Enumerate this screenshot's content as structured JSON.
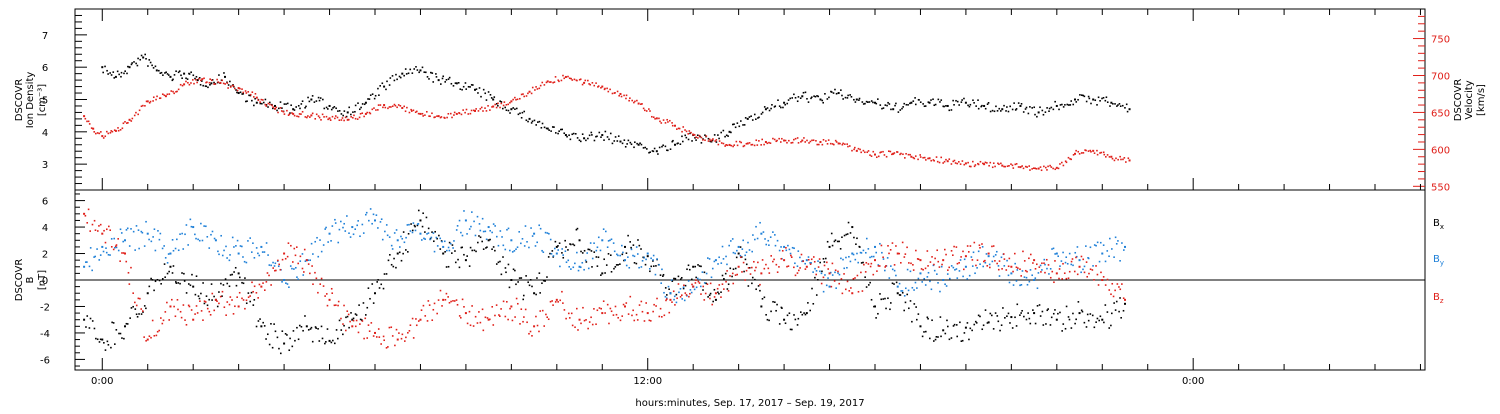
{
  "chart_data": [
    {
      "type": "scatter",
      "panel": "top",
      "ylabel_left": [
        "DSCOVR",
        "Ion Density",
        "[cm⁻³]"
      ],
      "ylabel_right": [
        "DSCOVR",
        "Velocity",
        "[km/s]"
      ],
      "x_axis": {
        "unit": "hours since 00:00 Sep 17, 2017",
        "range": [
          -0.6,
          29.1
        ]
      },
      "y_left": {
        "range": [
          2.2,
          7.8
        ],
        "ticks": [
          3,
          4,
          5,
          6,
          7
        ]
      },
      "y_right": {
        "range": [
          545,
          790
        ],
        "ticks": [
          550,
          600,
          650,
          700,
          750
        ]
      },
      "grid": false,
      "series": [
        {
          "quantity": "Ion Density",
          "color": "#000000",
          "axis": "left",
          "x": [
            0,
            0.3,
            0.6,
            0.9,
            1.2,
            1.5,
            1.8,
            2.1,
            2.4,
            2.7,
            3.0,
            3.4,
            3.8,
            4.2,
            4.6,
            5.0,
            5.4,
            5.8,
            6.2,
            6.6,
            7.0,
            7.4,
            7.8,
            8.2,
            8.6,
            9.0,
            9.4,
            9.8,
            10.2,
            10.6,
            11.0,
            11.4,
            11.8,
            12.2,
            12.6,
            13.0,
            13.4,
            13.8,
            14.2,
            14.6,
            15.0,
            15.4,
            15.8,
            16.2,
            16.6,
            17.0,
            17.4,
            17.8,
            18.2,
            18.6,
            19.0,
            19.4,
            19.8,
            20.2,
            20.6,
            21.0,
            21.4,
            21.8,
            22.2,
            22.6
          ],
          "values": [
            6.0,
            5.7,
            6.0,
            6.3,
            5.9,
            5.7,
            5.8,
            5.6,
            5.5,
            5.7,
            5.2,
            4.9,
            4.8,
            4.7,
            5.0,
            4.8,
            4.6,
            4.9,
            5.4,
            5.8,
            5.9,
            5.6,
            5.5,
            5.3,
            5.0,
            4.7,
            4.4,
            4.1,
            3.9,
            3.8,
            3.9,
            3.7,
            3.6,
            3.4,
            3.6,
            3.9,
            3.7,
            4.0,
            4.4,
            4.7,
            4.9,
            5.1,
            5.0,
            5.2,
            5.0,
            4.9,
            4.7,
            4.9,
            4.9,
            4.8,
            4.9,
            4.8,
            4.7,
            4.8,
            4.6,
            4.8,
            5.0,
            5.0,
            4.9,
            4.7
          ]
        },
        {
          "quantity": "Velocity",
          "color": "#e0201a",
          "axis": "right",
          "x": [
            -0.4,
            -0.2,
            0,
            0.3,
            0.6,
            1.0,
            1.4,
            1.8,
            2.2,
            2.6,
            3.0,
            3.4,
            3.8,
            4.2,
            4.6,
            5.0,
            5.4,
            5.8,
            6.2,
            6.6,
            7.0,
            7.4,
            7.8,
            8.2,
            8.6,
            9.0,
            9.4,
            9.8,
            10.2,
            10.6,
            11.0,
            11.4,
            11.8,
            12.2,
            12.6,
            13.0,
            13.4,
            13.8,
            14.2,
            14.6,
            15.0,
            15.4,
            15.8,
            16.2,
            16.6,
            17.0,
            17.4,
            17.8,
            18.2,
            18.6,
            19.0,
            19.4,
            19.8,
            20.2,
            20.6,
            21.0,
            21.4,
            21.8,
            22.2,
            22.6
          ],
          "values": [
            645,
            628,
            618,
            625,
            640,
            665,
            672,
            688,
            695,
            690,
            683,
            670,
            655,
            648,
            646,
            642,
            640,
            648,
            660,
            656,
            648,
            645,
            648,
            652,
            658,
            665,
            678,
            692,
            698,
            690,
            685,
            675,
            662,
            642,
            632,
            620,
            612,
            606,
            608,
            610,
            612,
            612,
            610,
            608,
            598,
            593,
            594,
            590,
            588,
            584,
            581,
            580,
            578,
            576,
            574,
            575,
            594,
            598,
            590,
            585
          ]
        }
      ]
    },
    {
      "type": "scatter",
      "panel": "bottom",
      "ylabel_left": [
        "DSCOVR",
        "B",
        "[nT]"
      ],
      "x_axis": {
        "unit": "hours since 00:00 Sep 17, 2017",
        "range": [
          -0.6,
          29.1
        ]
      },
      "y": {
        "range": [
          -6.8,
          6.8
        ],
        "ticks": [
          -6,
          -4,
          -2,
          0,
          2,
          4,
          6
        ]
      },
      "zero_line": true,
      "grid": false,
      "legend_position": "right",
      "series": [
        {
          "name": "Bx",
          "color": "#000000",
          "x": [
            -0.4,
            0,
            0.5,
            1.0,
            1.5,
            2.0,
            2.5,
            3.0,
            3.5,
            4.0,
            4.5,
            5.0,
            5.5,
            6.0,
            6.5,
            7.0,
            7.5,
            8.0,
            8.5,
            9.0,
            9.5,
            10.0,
            10.5,
            11.0,
            11.5,
            12.0,
            12.5,
            13.0,
            13.5,
            14.0,
            14.5,
            15.0,
            15.5,
            16.0,
            16.5,
            17.0,
            17.5,
            18.0,
            18.5,
            19.0,
            19.5,
            20.0,
            20.5,
            21.0,
            21.5,
            22.0,
            22.5
          ],
          "values": [
            -3.0,
            -4.5,
            -3.5,
            -1.0,
            1.0,
            -0.5,
            -1.5,
            0.5,
            -3.5,
            -4.8,
            -3.5,
            -4.6,
            -3.0,
            -1.0,
            2.0,
            4.5,
            2.0,
            1.5,
            3.0,
            0.0,
            -1.0,
            2.5,
            3.0,
            0.5,
            2.5,
            1.8,
            -1.0,
            1.0,
            -1.5,
            2.0,
            -2.0,
            -3.0,
            -2.5,
            2.5,
            4.0,
            -2.0,
            -1.0,
            -3.5,
            -3.8,
            -3.6,
            -3.2,
            -2.8,
            -2.5,
            -3.0,
            -2.5,
            -3.0,
            -1.8
          ]
        },
        {
          "name": "By",
          "color": "#1f80d8",
          "x": [
            -0.4,
            0,
            0.5,
            1.0,
            1.5,
            2.0,
            2.5,
            3.0,
            3.5,
            4.0,
            4.5,
            5.0,
            5.5,
            6.0,
            6.5,
            7.0,
            7.5,
            8.0,
            8.5,
            9.0,
            9.5,
            10.0,
            10.5,
            11.0,
            11.5,
            12.0,
            12.5,
            13.0,
            13.5,
            14.0,
            14.5,
            15.0,
            15.5,
            16.0,
            16.5,
            17.0,
            17.5,
            18.0,
            18.5,
            19.0,
            19.5,
            20.0,
            20.5,
            21.0,
            21.5,
            22.0,
            22.5
          ],
          "values": [
            1.0,
            2.5,
            3.0,
            3.5,
            2.0,
            4.0,
            3.0,
            2.0,
            2.5,
            0.0,
            1.5,
            3.5,
            4.0,
            4.5,
            3.0,
            3.5,
            2.5,
            4.5,
            4.0,
            3.0,
            3.5,
            2.0,
            1.0,
            3.0,
            1.5,
            2.0,
            -1.0,
            -0.5,
            1.5,
            2.5,
            3.5,
            2.5,
            1.5,
            -0.5,
            2.0,
            2.5,
            -0.5,
            0.5,
            0.0,
            1.0,
            1.8,
            0.5,
            0.0,
            2.0,
            1.5,
            2.0,
            2.5
          ]
        },
        {
          "name": "Bz",
          "color": "#e0201a",
          "x": [
            -0.4,
            0,
            0.5,
            1.0,
            1.5,
            2.0,
            2.5,
            3.0,
            3.5,
            4.0,
            4.5,
            5.0,
            5.5,
            6.0,
            6.5,
            7.0,
            7.5,
            8.0,
            8.5,
            9.0,
            9.5,
            10.0,
            10.5,
            11.0,
            11.5,
            12.0,
            12.5,
            13.0,
            13.5,
            14.0,
            14.5,
            15.0,
            15.5,
            16.0,
            16.5,
            17.0,
            17.5,
            18.0,
            18.5,
            19.0,
            19.5,
            20.0,
            20.5,
            21.0,
            21.5,
            22.0,
            22.5
          ],
          "values": [
            5.0,
            3.5,
            2.0,
            -4.5,
            -2.0,
            -3.0,
            -1.5,
            -2.0,
            -0.5,
            2.0,
            1.5,
            -1.5,
            -3.5,
            -4.0,
            -4.5,
            -3.0,
            -1.5,
            -2.5,
            -3.0,
            -2.0,
            -3.5,
            -1.5,
            -3.0,
            -2.5,
            -2.0,
            -2.5,
            -1.5,
            -0.5,
            -1.0,
            1.0,
            0.5,
            1.5,
            1.0,
            0.5,
            -1.0,
            1.5,
            2.0,
            1.5,
            1.5,
            1.8,
            2.0,
            1.0,
            1.5,
            0.5,
            1.0,
            0.0,
            -1.5
          ]
        }
      ]
    }
  ],
  "text": {
    "tick_labels_x": [
      "0:00",
      "12:00",
      "0:00"
    ],
    "tick_hours_x": [
      0,
      12,
      24
    ],
    "xlabel": "hours:minutes, Sep. 17, 2017 – Sep. 19, 2017",
    "legend": {
      "bx": {
        "base": "B",
        "sub": "x"
      },
      "by": {
        "base": "B",
        "sub": "y"
      },
      "bz": {
        "base": "B",
        "sub": "z"
      }
    }
  }
}
